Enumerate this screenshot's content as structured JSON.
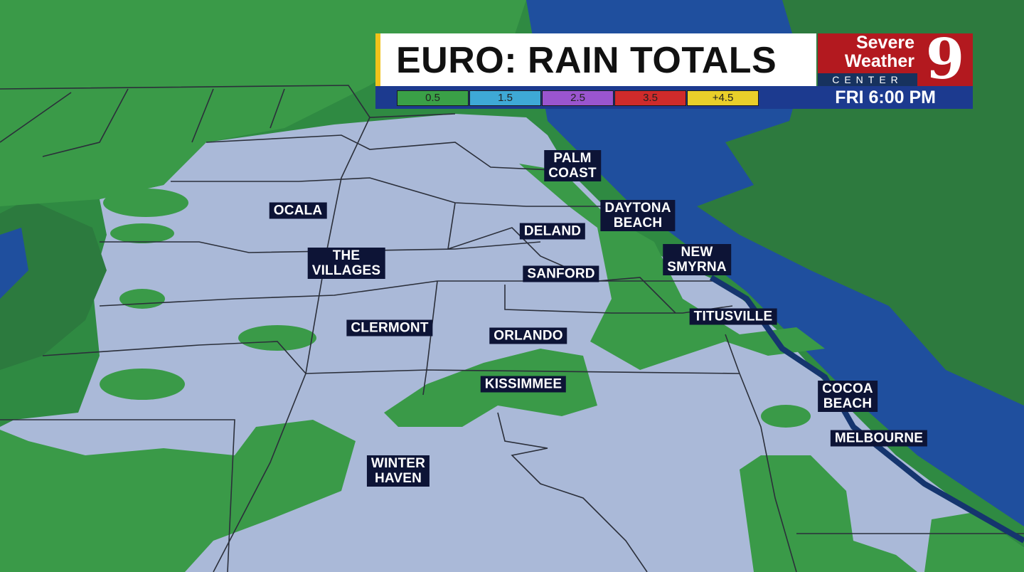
{
  "header": {
    "title": "EURO: RAIN TOTALS",
    "time": "FRI  6:00 PM",
    "logo": {
      "line1": "Severe",
      "line2": "Weather",
      "line3": "CENTER",
      "number": "9"
    }
  },
  "legend": [
    {
      "label": "0.5",
      "color": "#3aa047"
    },
    {
      "label": "1.5",
      "color": "#3ea9d6"
    },
    {
      "label": "2.5",
      "color": "#9a55cf"
    },
    {
      "label": "3.5",
      "color": "#cf2b2b"
    },
    {
      "label": "+4.5",
      "color": "#e9cf2a"
    }
  ],
  "cities": [
    {
      "name": "PALM\nCOAST"
    },
    {
      "name": "DAYTONA\nBEACH"
    },
    {
      "name": "OCALA"
    },
    {
      "name": "DELAND"
    },
    {
      "name": "THE\nVILLAGES"
    },
    {
      "name": "NEW\nSMYRNA"
    },
    {
      "name": "SANFORD"
    },
    {
      "name": "TITUSVILLE"
    },
    {
      "name": "CLERMONT"
    },
    {
      "name": "ORLANDO"
    },
    {
      "name": "KISSIMMEE"
    },
    {
      "name": "COCOA\nBEACH"
    },
    {
      "name": "MELBOURNE"
    },
    {
      "name": "WINTER\nHAVEN"
    }
  ],
  "colors": {
    "land": "#aab9d8",
    "ocean": "#1f4f9e",
    "rain": "#3a9a48"
  }
}
